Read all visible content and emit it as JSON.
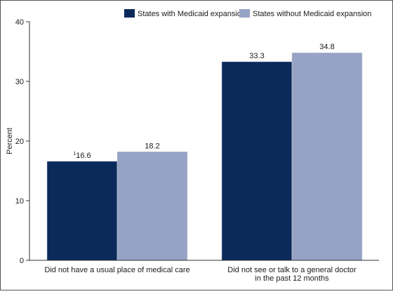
{
  "chart_data": {
    "type": "bar",
    "title": "",
    "xlabel": "",
    "ylabel": "Percent",
    "ylim": [
      0,
      40
    ],
    "yticks": [
      0,
      10,
      20,
      30,
      40
    ],
    "grid": false,
    "legend_position": "top-right",
    "categories": [
      [
        "Did not have a usual place of medical care"
      ],
      [
        "Did not see or talk to a general doctor",
        "in the past 12 months"
      ]
    ],
    "series": [
      {
        "name": "States with Medicaid expansion",
        "color": "#0b2a5b",
        "values": [
          16.6,
          33.3
        ],
        "labels": [
          "16.6",
          "33.3"
        ],
        "label_notes": [
          "1",
          ""
        ]
      },
      {
        "name": "States without Medicaid expansion",
        "color": "#97a3c5",
        "values": [
          18.2,
          34.8
        ],
        "labels": [
          "18.2",
          "34.8"
        ],
        "label_notes": [
          "",
          ""
        ]
      }
    ]
  }
}
